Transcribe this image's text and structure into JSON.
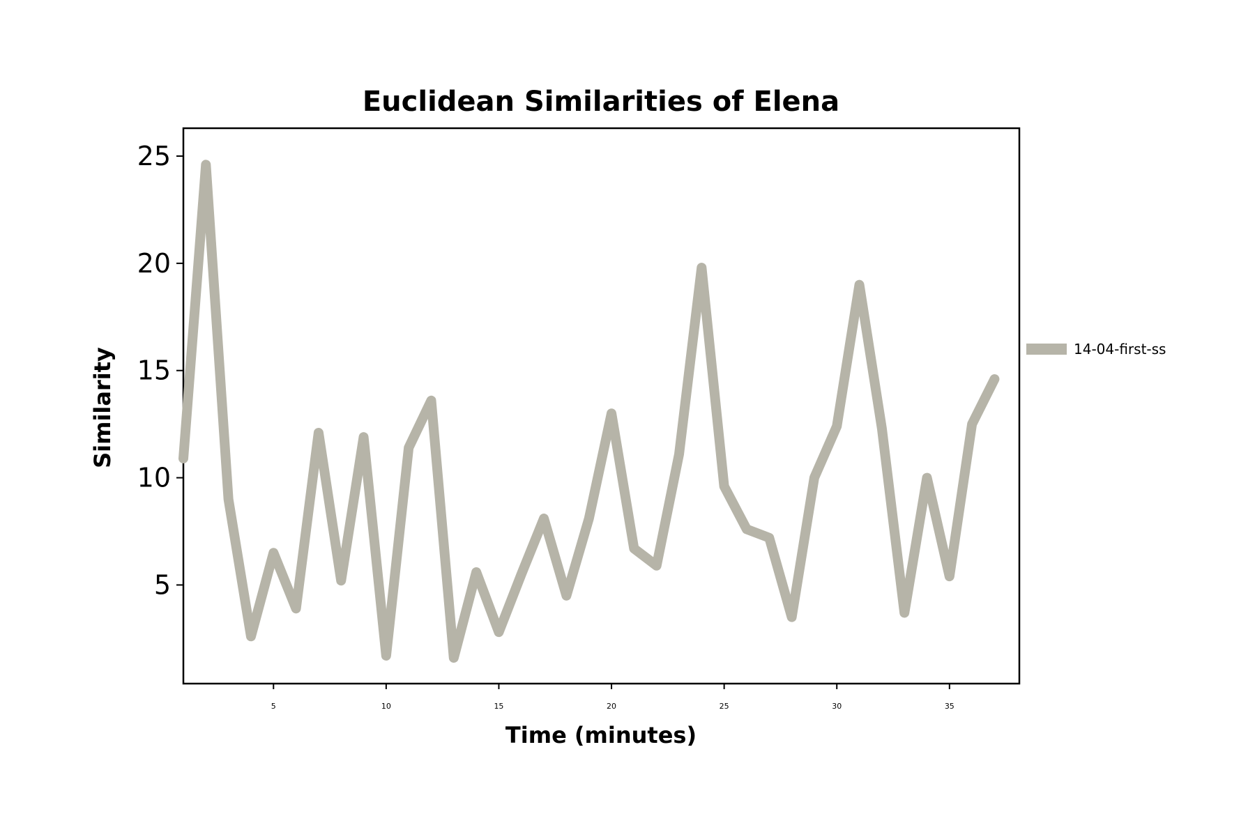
{
  "chart_data": {
    "type": "line",
    "title": "Euclidean Similarities of Elena",
    "xlabel": "Time (minutes)",
    "ylabel": "Similarity",
    "xlim": [
      1,
      38.1
    ],
    "ylim": [
      0.4,
      26.3
    ],
    "xticks": [
      5,
      10,
      15,
      20,
      25,
      30,
      35
    ],
    "yticks": [
      5,
      10,
      15,
      20,
      25
    ],
    "grid": false,
    "legend_position": "right",
    "series": [
      {
        "name": "14-04-first-ss",
        "color": "#b6b4a8",
        "x": [
          1,
          2,
          3,
          4,
          5,
          6,
          7,
          8,
          9,
          10,
          11,
          12,
          13,
          14,
          15,
          16,
          17,
          18,
          19,
          20,
          21,
          22,
          23,
          24,
          25,
          26,
          27,
          28,
          29,
          30,
          31,
          32,
          33,
          34,
          35,
          36,
          37
        ],
        "values": [
          10.9,
          24.6,
          9.0,
          2.6,
          6.5,
          3.9,
          12.1,
          5.2,
          11.9,
          1.7,
          11.4,
          13.6,
          1.6,
          5.6,
          2.8,
          5.5,
          8.1,
          4.5,
          8.1,
          13.0,
          6.7,
          5.9,
          11.1,
          19.8,
          9.6,
          7.6,
          7.2,
          3.5,
          10.0,
          12.4,
          19.0,
          12.3,
          3.7,
          10.0,
          5.4,
          12.5,
          14.6
        ]
      }
    ]
  }
}
